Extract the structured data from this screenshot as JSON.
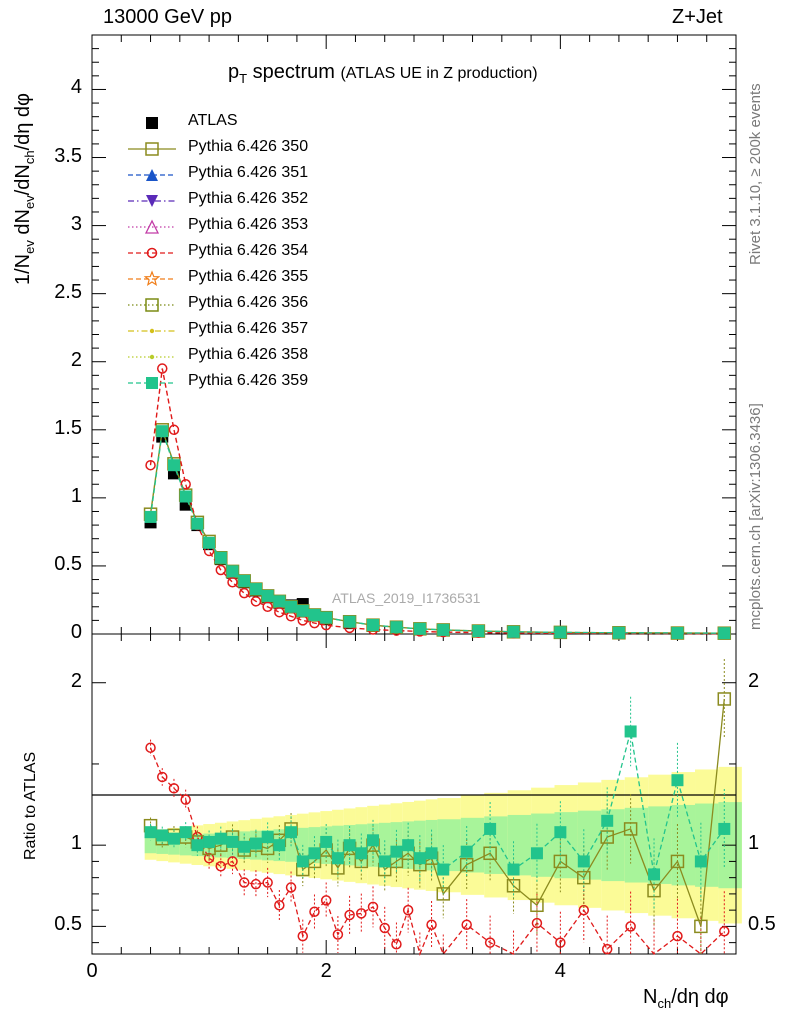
{
  "header": {
    "left": "13000 GeV pp",
    "right": "Z+Jet"
  },
  "plot_title_main": "p",
  "plot_title_sub": "T",
  "plot_title_rest": " spectrum",
  "plot_title_paren": "(ATLAS UE in Z production)",
  "side_right_top": "Rivet 3.1.10, ≥ 200k events",
  "side_right_bottom": "mcplots.cern.ch [arXiv:1306.3436]",
  "watermark": "ATLAS_2019_I1736531",
  "ylabel_main": "1/N_ev dN_ev/dN_ch/dη dφ",
  "ylabel_ratio": "Ratio to ATLAS",
  "xlabel": "N_ch/dη dφ",
  "legend": [
    {
      "label": "ATLAS",
      "color": "#000000",
      "marker": "square-filled",
      "dash": "none"
    },
    {
      "label": "Pythia 6.426 350",
      "color": "#8b8b1f",
      "marker": "square-open",
      "dash": "solid"
    },
    {
      "label": "Pythia 6.426 351",
      "color": "#1a55c8",
      "marker": "triangle-up-filled",
      "dash": "dashed"
    },
    {
      "label": "Pythia 6.426 352",
      "color": "#5a2ab8",
      "marker": "triangle-down-filled",
      "dash": "dashdot"
    },
    {
      "label": "Pythia 6.426 353",
      "color": "#c23ca6",
      "marker": "triangle-up-open",
      "dash": "dotted"
    },
    {
      "label": "Pythia 6.426 354",
      "color": "#e01a1a",
      "marker": "circle-open",
      "dash": "dashed"
    },
    {
      "label": "Pythia 6.426 355",
      "color": "#f07e1a",
      "marker": "star-open",
      "dash": "dashed"
    },
    {
      "label": "Pythia 6.426 356",
      "color": "#7b8b14",
      "marker": "square-open",
      "dash": "dotted"
    },
    {
      "label": "Pythia 6.426 357",
      "color": "#d4c01a",
      "marker": "dot",
      "dash": "dashdot"
    },
    {
      "label": "Pythia 6.426 358",
      "color": "#b8cc2a",
      "marker": "dot",
      "dash": "dotted"
    },
    {
      "label": "Pythia 6.426 359",
      "color": "#22c48c",
      "marker": "square-filled",
      "dash": "dashed"
    }
  ],
  "chart_data": [
    {
      "type": "line",
      "title": "pT spectrum (ATLAS UE in Z production)",
      "xlabel": "N_ch/dη dφ",
      "ylabel": "1/N_ev dN_ev/dN_ch/dη dφ",
      "xlim": [
        0,
        5.5
      ],
      "ylim": [
        0,
        4.4
      ],
      "x_ticks": [
        "0",
        "2",
        "4"
      ],
      "y_ticks": [
        "0",
        "0.5",
        "1",
        "1.5",
        "2",
        "2.5",
        "3",
        "3.5",
        "4"
      ],
      "x": [
        0.5,
        0.6,
        0.7,
        0.8,
        0.9,
        1.0,
        1.1,
        1.2,
        1.3,
        1.4,
        1.5,
        1.6,
        1.7,
        1.8,
        1.9,
        2.0,
        2.2,
        2.4,
        2.6,
        2.8,
        3.0,
        3.3,
        3.6,
        4.0,
        4.5,
        5.0,
        5.4
      ],
      "series": [
        {
          "name": "ATLAS",
          "values": [
            0.82,
            1.45,
            1.18,
            0.95,
            0.8,
            0.66,
            0.55,
            0.45,
            0.38,
            0.32,
            0.27,
            0.23,
            0.21,
            0.22,
            0.14,
            0.11,
            0.08,
            0.06,
            0.045,
            0.035,
            0.028,
            0.02,
            0.015,
            0.011,
            0.008,
            0.006,
            0.005
          ]
        },
        {
          "name": "Pythia 6.426 350",
          "values": [
            0.88,
            1.5,
            1.25,
            1.02,
            0.82,
            0.68,
            0.56,
            0.46,
            0.39,
            0.33,
            0.28,
            0.24,
            0.2,
            0.17,
            0.14,
            0.12,
            0.09,
            0.065,
            0.05,
            0.038,
            0.03,
            0.022,
            0.016,
            0.012,
            0.009,
            0.007,
            0.006
          ]
        },
        {
          "name": "Pythia 6.426 354",
          "values": [
            1.24,
            1.95,
            1.5,
            1.1,
            0.8,
            0.61,
            0.47,
            0.38,
            0.3,
            0.24,
            0.2,
            0.16,
            0.13,
            0.1,
            0.08,
            0.065,
            0.045,
            0.033,
            0.025,
            0.019,
            0.014,
            0.01,
            0.007,
            0.005,
            0.004,
            0.003,
            0.002
          ]
        },
        {
          "name": "Pythia 6.426 359",
          "values": [
            0.86,
            1.49,
            1.24,
            1.01,
            0.81,
            0.67,
            0.56,
            0.46,
            0.39,
            0.33,
            0.28,
            0.24,
            0.2,
            0.17,
            0.14,
            0.12,
            0.09,
            0.066,
            0.05,
            0.038,
            0.03,
            0.022,
            0.016,
            0.012,
            0.009,
            0.007,
            0.006
          ]
        }
      ]
    },
    {
      "type": "line",
      "title": "",
      "xlabel": "N_ch/dη dφ",
      "ylabel": "Ratio to ATLAS",
      "xlim": [
        0,
        5.5
      ],
      "ylim": [
        0.33,
        2.3
      ],
      "x_ticks": [
        "0",
        "2",
        "4"
      ],
      "y_ticks": [
        "0.5",
        "1",
        "2"
      ],
      "reference_line": 1,
      "x": [
        0.5,
        0.6,
        0.7,
        0.8,
        0.9,
        1.0,
        1.1,
        1.2,
        1.3,
        1.4,
        1.5,
        1.6,
        1.7,
        1.8,
        1.9,
        2.0,
        2.1,
        2.2,
        2.3,
        2.4,
        2.5,
        2.6,
        2.7,
        2.8,
        2.9,
        3.0,
        3.2,
        3.4,
        3.6,
        3.8,
        4.0,
        4.2,
        4.4,
        4.6,
        4.8,
        5.0,
        5.2,
        5.4
      ],
      "series": [
        {
          "name": "Pythia 6.426 354",
          "values": [
            1.6,
            1.42,
            1.35,
            1.28,
            1.05,
            0.92,
            0.87,
            0.9,
            0.77,
            0.76,
            0.77,
            0.63,
            0.74,
            0.44,
            0.59,
            0.66,
            0.45,
            0.57,
            0.58,
            0.62,
            0.49,
            0.39,
            0.6,
            0.32,
            0.51,
            0.3,
            0.51,
            0.4,
            0.3,
            0.52,
            0.4,
            0.6,
            0.36,
            0.5,
            0.32,
            0.44,
            0.32,
            0.47
          ]
        },
        {
          "name": "Pythia 6.426 350",
          "values": [
            1.12,
            1.04,
            1.06,
            1.05,
            1.02,
            0.98,
            1.0,
            1.05,
            0.97,
            1.0,
            0.98,
            1.03,
            1.1,
            0.85,
            0.9,
            0.97,
            0.86,
            0.98,
            0.9,
            1.0,
            0.85,
            0.9,
            0.95,
            0.88,
            0.92,
            0.7,
            0.88,
            0.95,
            0.75,
            0.63,
            0.9,
            0.8,
            1.05,
            1.1,
            0.72,
            0.9,
            0.5,
            1.9
          ]
        },
        {
          "name": "Pythia 6.426 359",
          "values": [
            1.08,
            1.06,
            1.04,
            1.08,
            1.0,
            1.02,
            1.04,
            1.02,
            0.99,
            1.01,
            1.05,
            1.0,
            1.08,
            0.9,
            0.95,
            1.02,
            0.92,
            1.0,
            0.95,
            1.03,
            0.9,
            0.96,
            1.0,
            0.92,
            0.95,
            0.85,
            0.96,
            1.1,
            0.85,
            0.95,
            1.08,
            0.9,
            1.15,
            1.7,
            0.82,
            1.4,
            0.9,
            1.1
          ]
        }
      ]
    }
  ]
}
